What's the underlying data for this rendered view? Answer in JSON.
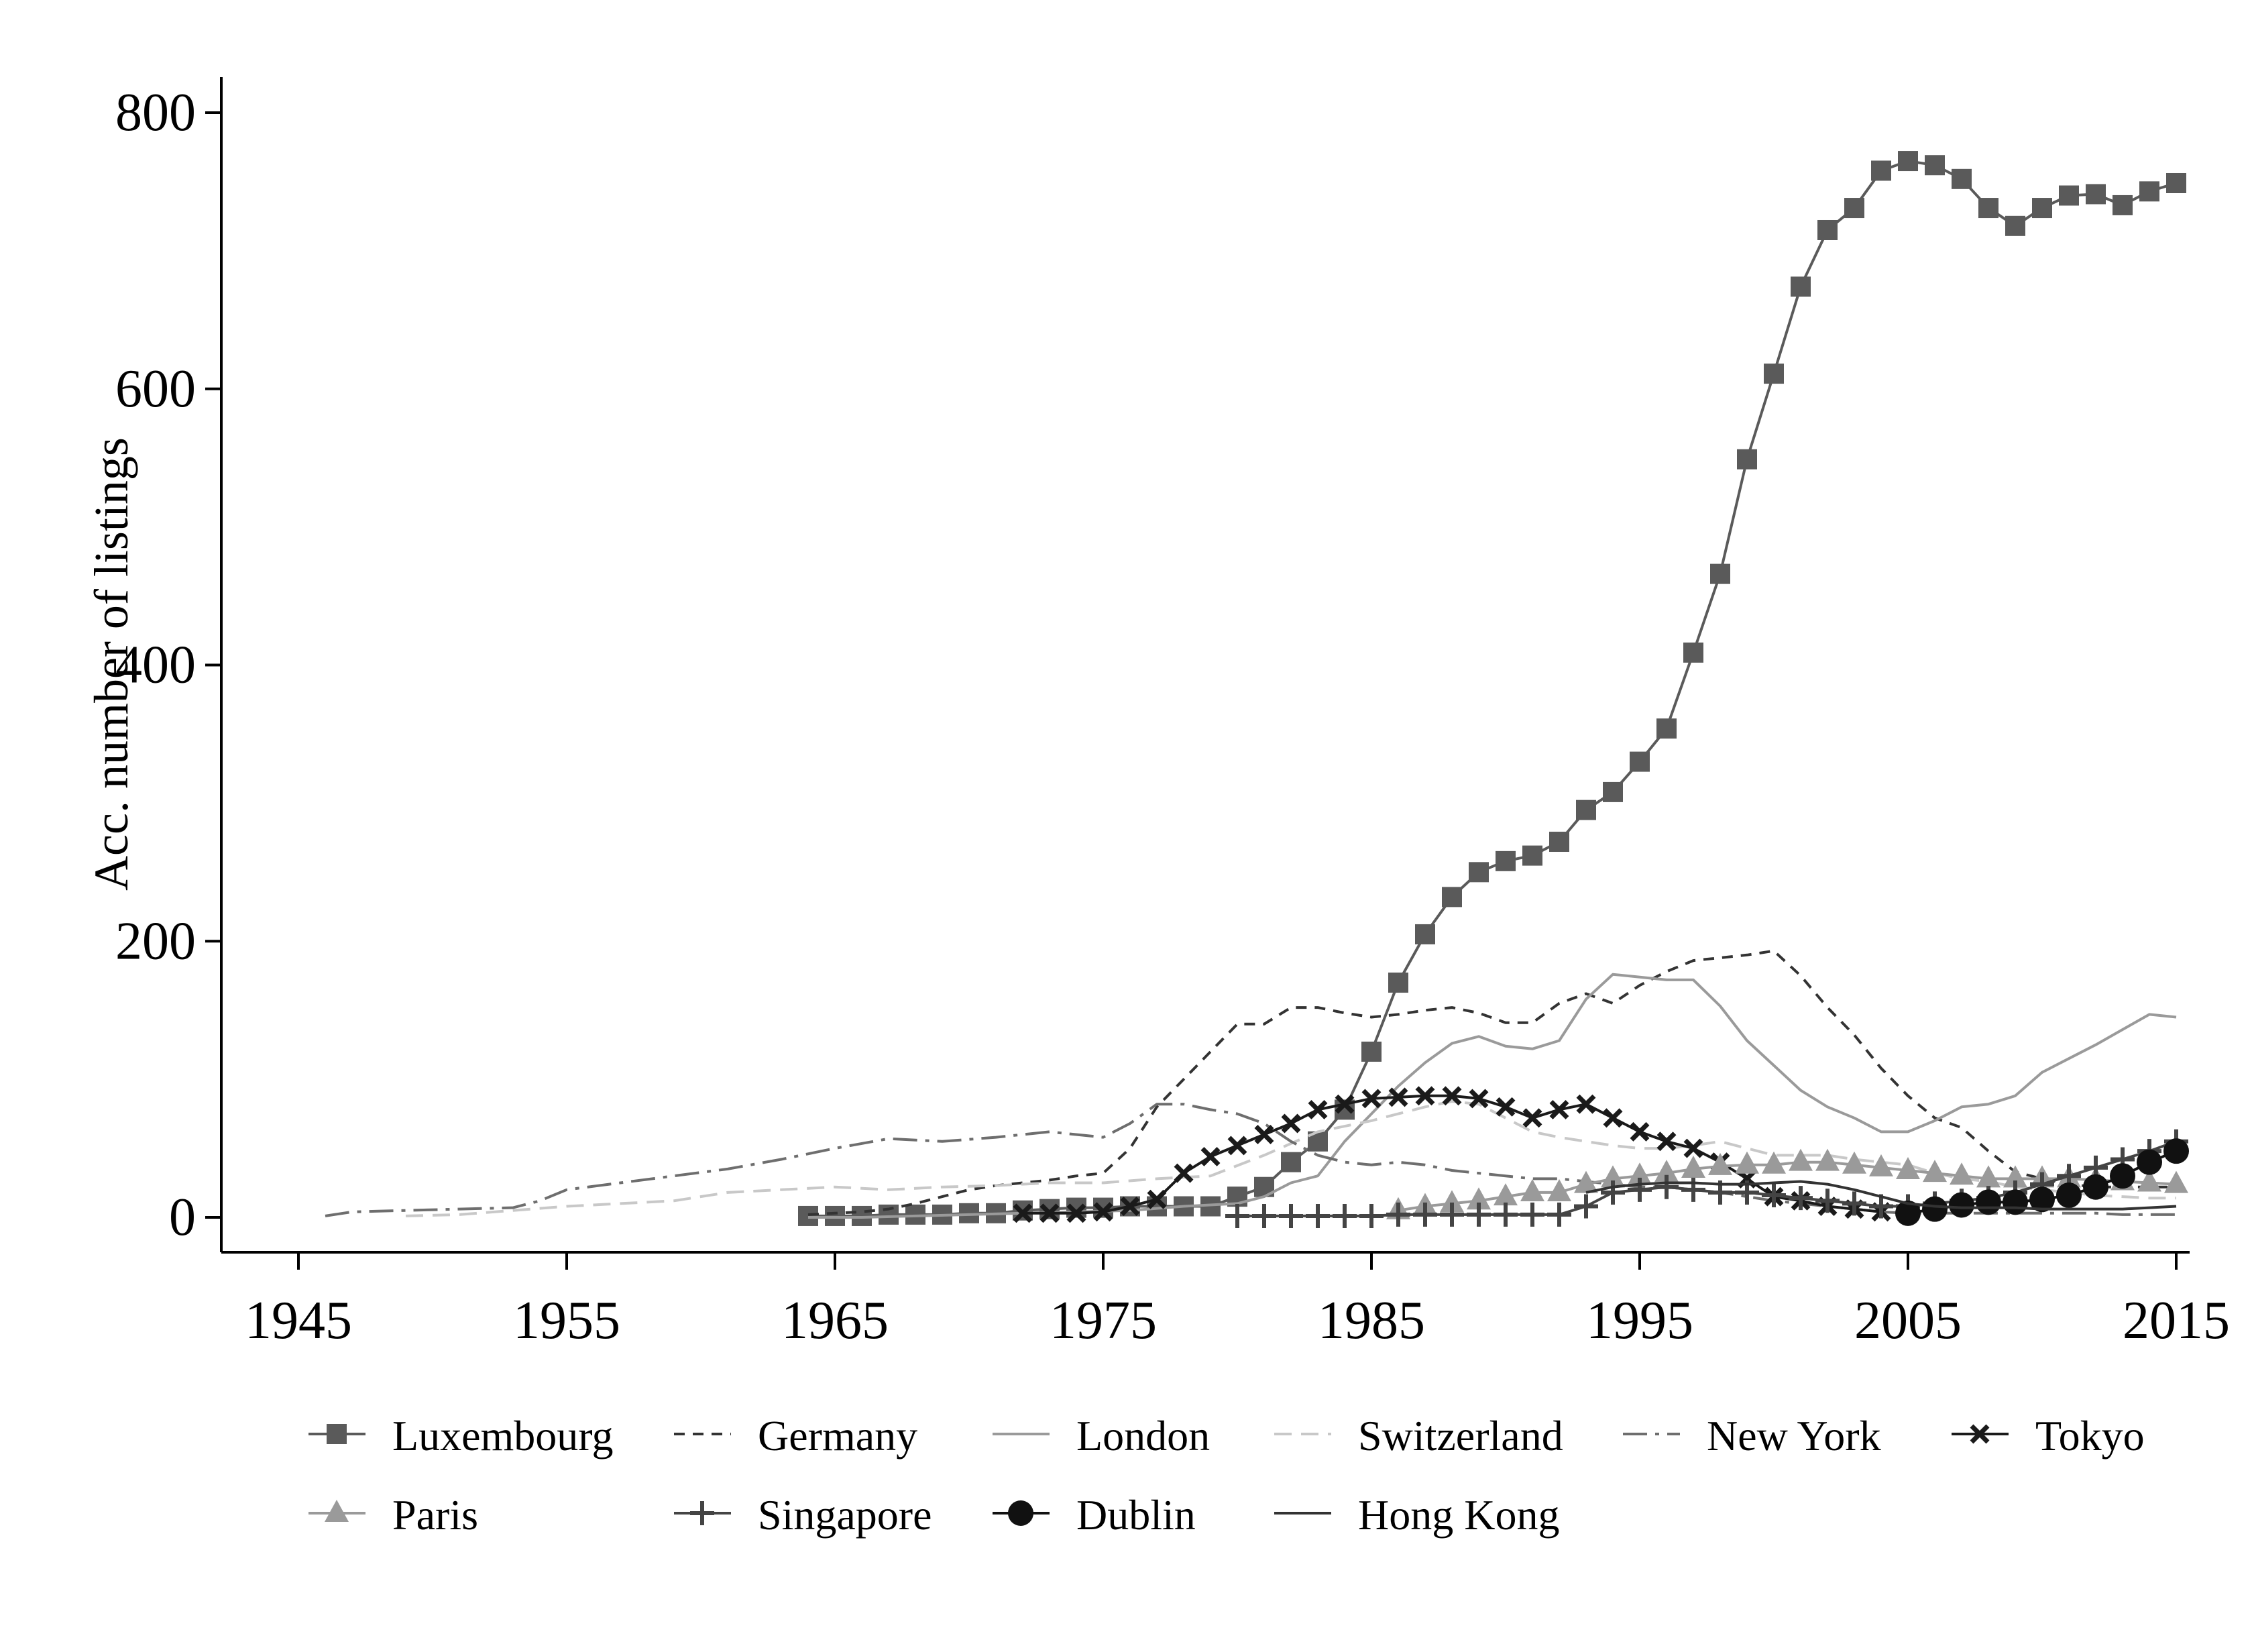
{
  "chart_data": {
    "type": "line",
    "title": "",
    "xlabel": "",
    "ylabel": "Acc. number of listings",
    "xlim": [
      1945,
      2015
    ],
    "ylim": [
      0,
      800
    ],
    "xticks": [
      1945,
      1955,
      1965,
      1975,
      1985,
      1995,
      2005,
      2015
    ],
    "yticks": [
      0,
      200,
      400,
      600,
      800
    ],
    "grid": false,
    "legend_position": "bottom",
    "series": [
      {
        "name": "Luxembourg",
        "color": "#5a5a5a",
        "dash": "",
        "marker": "square",
        "width": 4,
        "x": [
          1964,
          1965,
          1966,
          1967,
          1968,
          1969,
          1970,
          1971,
          1972,
          1973,
          1974,
          1975,
          1976,
          1977,
          1978,
          1979,
          1980,
          1981,
          1982,
          1983,
          1984,
          1985,
          1986,
          1987,
          1988,
          1989,
          1990,
          1991,
          1992,
          1993,
          1994,
          1995,
          1996,
          1997,
          1998,
          1999,
          2000,
          2001,
          2002,
          2003,
          2004,
          2005,
          2006,
          2007,
          2008,
          2009,
          2010,
          2011,
          2012,
          2013,
          2014,
          2015
        ],
        "y": [
          1,
          1,
          1,
          2,
          2,
          2,
          3,
          3,
          5,
          6,
          7,
          7,
          8,
          8,
          8,
          8,
          15,
          22,
          40,
          55,
          78,
          120,
          170,
          205,
          232,
          250,
          258,
          262,
          272,
          295,
          308,
          330,
          354,
          409,
          466,
          549,
          611,
          674,
          715,
          731,
          758,
          765,
          762,
          752,
          731,
          718,
          731,
          740,
          741,
          733,
          743,
          749
        ]
      },
      {
        "name": "Germany",
        "color": "#333333",
        "dash": "16,12",
        "marker": "none",
        "width": 4,
        "x": [
          1964,
          1965,
          1966,
          1967,
          1968,
          1969,
          1970,
          1971,
          1972,
          1973,
          1974,
          1975,
          1976,
          1977,
          1978,
          1979,
          1980,
          1981,
          1982,
          1983,
          1984,
          1985,
          1986,
          1987,
          1988,
          1989,
          1990,
          1991,
          1992,
          1993,
          1994,
          1995,
          1996,
          1997,
          1998,
          1999,
          2000,
          2001,
          2002,
          2003,
          2004,
          2005,
          2006,
          2007,
          2008,
          2009,
          2010,
          2011,
          2012,
          2013,
          2014,
          2015
        ],
        "y": [
          2,
          3,
          4,
          6,
          10,
          15,
          20,
          23,
          25,
          27,
          30,
          32,
          50,
          80,
          100,
          120,
          140,
          140,
          152,
          152,
          148,
          145,
          147,
          150,
          152,
          148,
          141,
          141,
          155,
          162,
          155,
          168,
          178,
          186,
          188,
          190,
          193,
          175,
          152,
          132,
          108,
          88,
          72,
          65,
          48,
          33,
          28,
          24,
          22,
          22,
          22,
          22
        ]
      },
      {
        "name": "London",
        "color": "#9a9a9a",
        "dash": "",
        "marker": "none",
        "width": 4,
        "x": [
          1964,
          1966,
          1968,
          1970,
          1972,
          1974,
          1976,
          1978,
          1980,
          1981,
          1982,
          1983,
          1984,
          1985,
          1986,
          1987,
          1988,
          1989,
          1990,
          1991,
          1992,
          1993,
          1994,
          1995,
          1996,
          1997,
          1998,
          1999,
          2000,
          2001,
          2002,
          2003,
          2004,
          2005,
          2006,
          2007,
          2008,
          2009,
          2010,
          2011,
          2012,
          2013,
          2014,
          2015
        ],
        "y": [
          0,
          0,
          1,
          2,
          3,
          4,
          5,
          8,
          10,
          15,
          25,
          30,
          55,
          75,
          95,
          112,
          126,
          131,
          124,
          122,
          128,
          158,
          176,
          174,
          172,
          172,
          153,
          128,
          110,
          92,
          80,
          72,
          62,
          62,
          70,
          80,
          82,
          88,
          105,
          115,
          125,
          136,
          147,
          145
        ]
      },
      {
        "name": "Switzerland",
        "color": "#c8c8c8",
        "dash": "26,14",
        "marker": "none",
        "width": 4,
        "x": [
          1949,
          1951,
          1953,
          1955,
          1957,
          1959,
          1961,
          1963,
          1965,
          1967,
          1969,
          1971,
          1973,
          1975,
          1977,
          1979,
          1981,
          1983,
          1985,
          1986,
          1987,
          1988,
          1989,
          1990,
          1991,
          1992,
          1993,
          1994,
          1995,
          1996,
          1997,
          1998,
          1999,
          2000,
          2001,
          2002,
          2003,
          2004,
          2005,
          2006,
          2007,
          2008,
          2009,
          2010,
          2011,
          2012,
          2013,
          2014,
          2015
        ],
        "y": [
          1,
          2,
          5,
          8,
          10,
          12,
          18,
          20,
          22,
          20,
          22,
          23,
          25,
          25,
          28,
          30,
          45,
          62,
          70,
          75,
          80,
          84,
          82,
          72,
          62,
          58,
          55,
          52,
          50,
          50,
          52,
          55,
          50,
          45,
          45,
          45,
          42,
          40,
          38,
          32,
          28,
          26,
          22,
          20,
          18,
          16,
          15,
          14,
          14
        ]
      },
      {
        "name": "New York",
        "color": "#6e6e6e",
        "dash": "36,12,6,12",
        "marker": "none",
        "width": 4,
        "x": [
          1946,
          1947,
          1949,
          1951,
          1953,
          1954,
          1955,
          1957,
          1959,
          1961,
          1963,
          1965,
          1967,
          1969,
          1971,
          1973,
          1975,
          1976,
          1977,
          1978,
          1979,
          1980,
          1981,
          1982,
          1983,
          1984,
          1985,
          1986,
          1987,
          1988,
          1989,
          1990,
          1991,
          1992,
          1993,
          1994,
          1995,
          1996,
          1997,
          1998,
          1999,
          2000,
          2001,
          2002,
          2003,
          2004,
          2005,
          2006,
          2007,
          2008,
          2009,
          2010,
          2011,
          2012,
          2013,
          2014,
          2015
        ],
        "y": [
          1,
          4,
          5,
          6,
          7,
          12,
          20,
          25,
          30,
          35,
          42,
          50,
          57,
          55,
          58,
          62,
          58,
          68,
          82,
          82,
          78,
          75,
          68,
          55,
          45,
          40,
          38,
          40,
          38,
          34,
          32,
          30,
          28,
          28,
          26,
          24,
          22,
          22,
          20,
          18,
          15,
          12,
          10,
          8,
          6,
          4,
          3,
          3,
          3,
          3,
          3,
          3,
          3,
          3,
          2,
          2,
          2
        ]
      },
      {
        "name": "Tokyo",
        "color": "#1a1a1a",
        "dash": "",
        "marker": "x",
        "width": 4,
        "x": [
          1972,
          1973,
          1974,
          1975,
          1976,
          1977,
          1978,
          1979,
          1980,
          1981,
          1982,
          1983,
          1984,
          1985,
          1986,
          1987,
          1988,
          1989,
          1990,
          1991,
          1992,
          1993,
          1994,
          1995,
          1996,
          1997,
          1998,
          1999,
          2000,
          2001,
          2002,
          2003,
          2004
        ],
        "y": [
          3,
          3,
          3,
          4,
          8,
          13,
          32,
          44,
          52,
          60,
          68,
          78,
          82,
          86,
          87,
          88,
          88,
          86,
          80,
          72,
          78,
          82,
          72,
          62,
          55,
          50,
          40,
          28,
          15,
          12,
          8,
          6,
          4
        ]
      },
      {
        "name": "Paris",
        "color": "#9a9a9a",
        "dash": "",
        "marker": "triangle",
        "width": 4,
        "x": [
          1986,
          1987,
          1988,
          1989,
          1990,
          1991,
          1992,
          1993,
          1994,
          1995,
          1996,
          1997,
          1998,
          1999,
          2000,
          2001,
          2002,
          2003,
          2004,
          2005,
          2006,
          2007,
          2008,
          2009,
          2010,
          2011,
          2012,
          2013,
          2014,
          2015
        ],
        "y": [
          5,
          8,
          10,
          12,
          15,
          18,
          18,
          24,
          28,
          30,
          32,
          35,
          37,
          38,
          38,
          40,
          40,
          38,
          36,
          34,
          32,
          30,
          28,
          28,
          28,
          28,
          27,
          26,
          25,
          24
        ]
      },
      {
        "name": "Singapore",
        "color": "#444444",
        "dash": "",
        "marker": "plus",
        "width": 4,
        "x": [
          1980,
          1981,
          1982,
          1983,
          1984,
          1985,
          1986,
          1987,
          1988,
          1989,
          1990,
          1991,
          1992,
          1993,
          1994,
          1995,
          1996,
          1997,
          1998,
          1999,
          2000,
          2001,
          2002,
          2003,
          2004,
          2005,
          2006,
          2007,
          2008,
          2009,
          2010,
          2011,
          2012,
          2013,
          2014,
          2015
        ],
        "y": [
          1,
          1,
          1,
          1,
          1,
          1,
          2,
          2,
          2,
          2,
          2,
          2,
          2,
          8,
          18,
          20,
          22,
          20,
          18,
          18,
          16,
          14,
          12,
          10,
          8,
          8,
          10,
          12,
          14,
          18,
          24,
          30,
          36,
          42,
          48,
          55
        ]
      },
      {
        "name": "Dublin",
        "color": "#111111",
        "dash": "",
        "marker": "circle",
        "width": 4,
        "x": [
          2005,
          2006,
          2007,
          2008,
          2009,
          2010,
          2011,
          2012,
          2013,
          2014,
          2015
        ],
        "y": [
          3,
          6,
          9,
          11,
          11,
          13,
          16,
          22,
          30,
          40,
          48
        ]
      },
      {
        "name": "Hong Kong",
        "color": "#333333",
        "dash": "",
        "marker": "none",
        "width": 4,
        "x": [
          1993,
          1994,
          1995,
          1996,
          1997,
          1998,
          1999,
          2000,
          2001,
          2002,
          2003,
          2004,
          2005,
          2006,
          2007,
          2008,
          2009,
          2010,
          2011,
          2012,
          2013,
          2014,
          2015
        ],
        "y": [
          18,
          22,
          24,
          25,
          25,
          24,
          24,
          25,
          26,
          24,
          20,
          15,
          10,
          8,
          7,
          7,
          7,
          6,
          6,
          6,
          6,
          7,
          8
        ]
      }
    ]
  }
}
